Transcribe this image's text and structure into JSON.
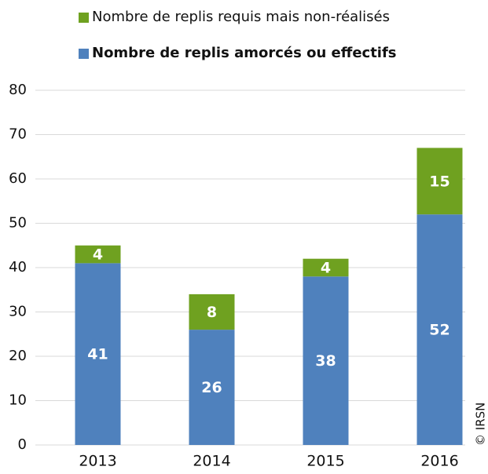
{
  "chart_data": {
    "type": "stacked_bar",
    "categories": [
      "2013",
      "2014",
      "2015",
      "2016"
    ],
    "series": [
      {
        "name": "Nombre de replis amorcés ou effectifs",
        "color": "#4f81bd",
        "values": [
          41,
          26,
          38,
          52
        ]
      },
      {
        "name": "Nombre de replis requis mais non-réalisés",
        "color": "#6fa120",
        "values": [
          4,
          8,
          4,
          15
        ]
      }
    ],
    "ylim": [
      0,
      80
    ],
    "yticks": [
      0,
      10,
      20,
      30,
      40,
      50,
      60,
      70,
      80
    ],
    "grid": true,
    "credit": "© IRSN"
  }
}
